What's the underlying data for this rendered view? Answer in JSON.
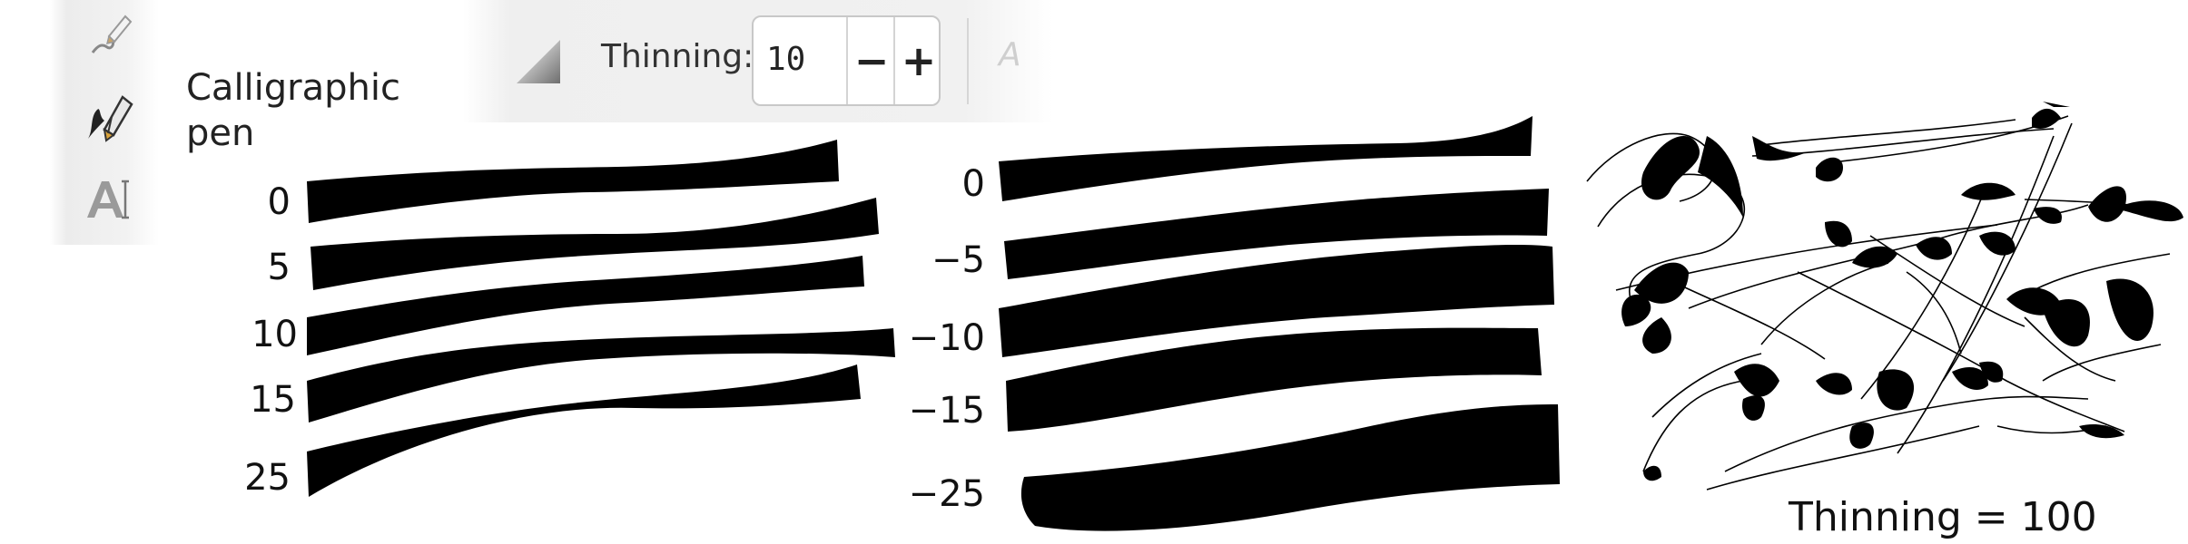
{
  "toolbox": {
    "tools": [
      {
        "name": "pencil-tool",
        "icon": "pencil-icon"
      },
      {
        "name": "calligraphic-tool",
        "icon": "calligraphy-pen-icon",
        "active": true
      },
      {
        "name": "text-tool",
        "icon": "text-tool-icon"
      }
    ],
    "active_label_line1": "Calligraphic",
    "active_label_line2": "pen"
  },
  "toolbar": {
    "thinning_label": "Thinning:",
    "thinning_value": "10",
    "decrement_label": "−",
    "increment_label": "+",
    "next_control_hint": "A"
  },
  "left_column_labels": [
    "0",
    "5",
    "10",
    "15",
    "25"
  ],
  "middle_column_labels": [
    "0",
    "−5",
    "−10",
    "−15",
    "−25"
  ],
  "caption": "Thinning = 100"
}
